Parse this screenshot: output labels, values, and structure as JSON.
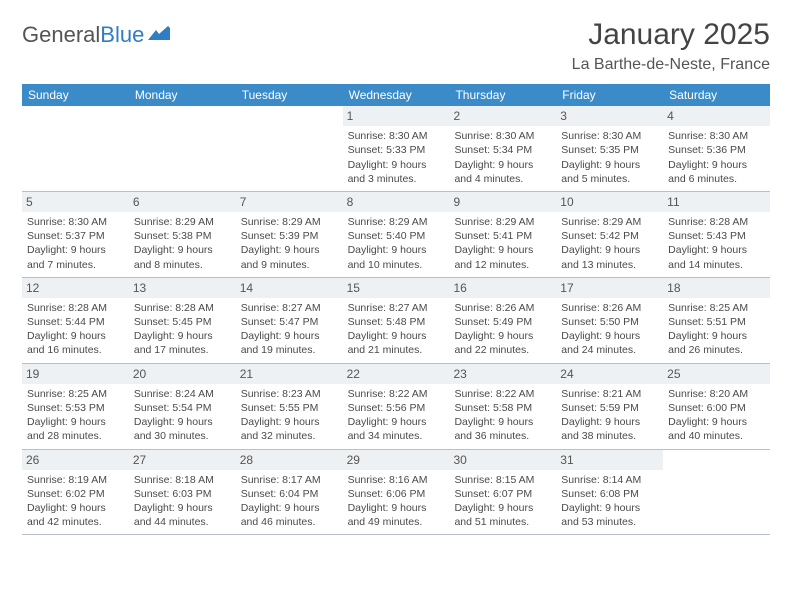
{
  "brand": {
    "part1": "General",
    "part2": "Blue"
  },
  "title": "January 2025",
  "location": "La Barthe-de-Neste, France",
  "colors": {
    "header_bg": "#3b8bc9",
    "daynum_bg": "#eef1f3",
    "border": "#b8c0c7",
    "text": "#4a4a4a",
    "brand_blue": "#2f7dc4"
  },
  "day_headers": [
    "Sunday",
    "Monday",
    "Tuesday",
    "Wednesday",
    "Thursday",
    "Friday",
    "Saturday"
  ],
  "weeks": [
    [
      {
        "n": "",
        "sr": "",
        "ss": "",
        "dl": ""
      },
      {
        "n": "",
        "sr": "",
        "ss": "",
        "dl": ""
      },
      {
        "n": "",
        "sr": "",
        "ss": "",
        "dl": ""
      },
      {
        "n": "1",
        "sr": "8:30 AM",
        "ss": "5:33 PM",
        "dl": "9 hours and 3 minutes."
      },
      {
        "n": "2",
        "sr": "8:30 AM",
        "ss": "5:34 PM",
        "dl": "9 hours and 4 minutes."
      },
      {
        "n": "3",
        "sr": "8:30 AM",
        "ss": "5:35 PM",
        "dl": "9 hours and 5 minutes."
      },
      {
        "n": "4",
        "sr": "8:30 AM",
        "ss": "5:36 PM",
        "dl": "9 hours and 6 minutes."
      }
    ],
    [
      {
        "n": "5",
        "sr": "8:30 AM",
        "ss": "5:37 PM",
        "dl": "9 hours and 7 minutes."
      },
      {
        "n": "6",
        "sr": "8:29 AM",
        "ss": "5:38 PM",
        "dl": "9 hours and 8 minutes."
      },
      {
        "n": "7",
        "sr": "8:29 AM",
        "ss": "5:39 PM",
        "dl": "9 hours and 9 minutes."
      },
      {
        "n": "8",
        "sr": "8:29 AM",
        "ss": "5:40 PM",
        "dl": "9 hours and 10 minutes."
      },
      {
        "n": "9",
        "sr": "8:29 AM",
        "ss": "5:41 PM",
        "dl": "9 hours and 12 minutes."
      },
      {
        "n": "10",
        "sr": "8:29 AM",
        "ss": "5:42 PM",
        "dl": "9 hours and 13 minutes."
      },
      {
        "n": "11",
        "sr": "8:28 AM",
        "ss": "5:43 PM",
        "dl": "9 hours and 14 minutes."
      }
    ],
    [
      {
        "n": "12",
        "sr": "8:28 AM",
        "ss": "5:44 PM",
        "dl": "9 hours and 16 minutes."
      },
      {
        "n": "13",
        "sr": "8:28 AM",
        "ss": "5:45 PM",
        "dl": "9 hours and 17 minutes."
      },
      {
        "n": "14",
        "sr": "8:27 AM",
        "ss": "5:47 PM",
        "dl": "9 hours and 19 minutes."
      },
      {
        "n": "15",
        "sr": "8:27 AM",
        "ss": "5:48 PM",
        "dl": "9 hours and 21 minutes."
      },
      {
        "n": "16",
        "sr": "8:26 AM",
        "ss": "5:49 PM",
        "dl": "9 hours and 22 minutes."
      },
      {
        "n": "17",
        "sr": "8:26 AM",
        "ss": "5:50 PM",
        "dl": "9 hours and 24 minutes."
      },
      {
        "n": "18",
        "sr": "8:25 AM",
        "ss": "5:51 PM",
        "dl": "9 hours and 26 minutes."
      }
    ],
    [
      {
        "n": "19",
        "sr": "8:25 AM",
        "ss": "5:53 PM",
        "dl": "9 hours and 28 minutes."
      },
      {
        "n": "20",
        "sr": "8:24 AM",
        "ss": "5:54 PM",
        "dl": "9 hours and 30 minutes."
      },
      {
        "n": "21",
        "sr": "8:23 AM",
        "ss": "5:55 PM",
        "dl": "9 hours and 32 minutes."
      },
      {
        "n": "22",
        "sr": "8:22 AM",
        "ss": "5:56 PM",
        "dl": "9 hours and 34 minutes."
      },
      {
        "n": "23",
        "sr": "8:22 AM",
        "ss": "5:58 PM",
        "dl": "9 hours and 36 minutes."
      },
      {
        "n": "24",
        "sr": "8:21 AM",
        "ss": "5:59 PM",
        "dl": "9 hours and 38 minutes."
      },
      {
        "n": "25",
        "sr": "8:20 AM",
        "ss": "6:00 PM",
        "dl": "9 hours and 40 minutes."
      }
    ],
    [
      {
        "n": "26",
        "sr": "8:19 AM",
        "ss": "6:02 PM",
        "dl": "9 hours and 42 minutes."
      },
      {
        "n": "27",
        "sr": "8:18 AM",
        "ss": "6:03 PM",
        "dl": "9 hours and 44 minutes."
      },
      {
        "n": "28",
        "sr": "8:17 AM",
        "ss": "6:04 PM",
        "dl": "9 hours and 46 minutes."
      },
      {
        "n": "29",
        "sr": "8:16 AM",
        "ss": "6:06 PM",
        "dl": "9 hours and 49 minutes."
      },
      {
        "n": "30",
        "sr": "8:15 AM",
        "ss": "6:07 PM",
        "dl": "9 hours and 51 minutes."
      },
      {
        "n": "31",
        "sr": "8:14 AM",
        "ss": "6:08 PM",
        "dl": "9 hours and 53 minutes."
      },
      {
        "n": "",
        "sr": "",
        "ss": "",
        "dl": ""
      }
    ]
  ],
  "labels": {
    "sunrise": "Sunrise: ",
    "sunset": "Sunset: ",
    "daylight": "Daylight: "
  }
}
